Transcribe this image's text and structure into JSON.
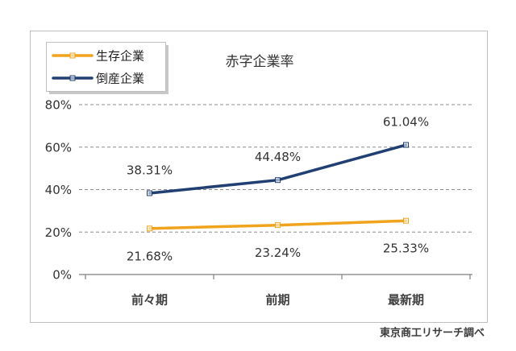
{
  "chart_data": {
    "type": "line",
    "title": "赤字企業率",
    "xlabel": "",
    "ylabel": "",
    "categories": [
      "前々期",
      "前期",
      "最新期"
    ],
    "series": [
      {
        "name": "生存企業",
        "values": [
          21.68,
          23.24,
          25.33
        ],
        "color": "#F0A31C"
      },
      {
        "name": "倒産企業",
        "values": [
          38.31,
          44.48,
          61.04
        ],
        "color": "#213F72"
      }
    ],
    "ylim": [
      0,
      80
    ],
    "yticks": [
      0,
      20,
      40,
      60,
      80
    ],
    "ytick_labels": [
      "0%",
      "20%",
      "40%",
      "60%",
      "80%"
    ],
    "value_suffix": "%",
    "grid": true,
    "legend": "top-left",
    "axis_color": "#7F7F7F",
    "grid_color": "#8C8C8C",
    "frame_color": "#BFBFBF"
  },
  "source": "東京商工リサーチ調べ"
}
